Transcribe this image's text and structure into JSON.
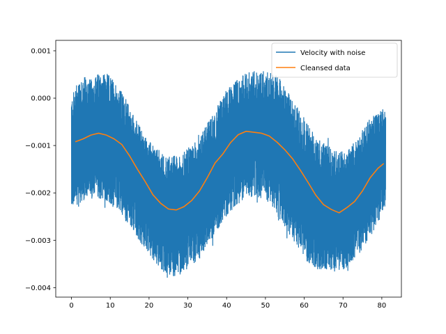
{
  "chart_data": {
    "type": "line",
    "title": "",
    "xlabel": "",
    "ylabel": "",
    "xlim": [
      -4.05,
      85.05
    ],
    "ylim": [
      -0.0042,
      0.00122
    ],
    "xticks": [
      0,
      10,
      20,
      30,
      40,
      50,
      60,
      70,
      80
    ],
    "xtick_labels": [
      "0",
      "10",
      "20",
      "30",
      "40",
      "50",
      "60",
      "70",
      "80"
    ],
    "yticks": [
      0.001,
      0.0,
      -0.001,
      -0.002,
      -0.003,
      -0.004
    ],
    "ytick_labels": [
      "0.001",
      "0.000",
      "−0.001",
      "−0.002",
      "−0.003",
      "−0.004"
    ],
    "grid": false,
    "legend_position": "top-right",
    "series": [
      {
        "name": "Velocity with noise",
        "color": "#1f77b4",
        "style": "dense-noisy",
        "x_range": [
          0,
          81
        ],
        "envelope_upper": [
          [
            0,
            0.0
          ],
          [
            2,
            0.0005
          ],
          [
            5,
            0.0004
          ],
          [
            8,
            0.0006
          ],
          [
            11,
            0.0004
          ],
          [
            14,
            0.0
          ],
          [
            17,
            -0.0005
          ],
          [
            20,
            -0.0009
          ],
          [
            24,
            -0.0012
          ],
          [
            28,
            -0.0012
          ],
          [
            32,
            -0.0009
          ],
          [
            36,
            -0.0004
          ],
          [
            40,
            0.0002
          ],
          [
            44,
            0.0005
          ],
          [
            47,
            0.0006
          ],
          [
            50,
            0.0006
          ],
          [
            53,
            0.0005
          ],
          [
            56,
            0.0001
          ],
          [
            60,
            -0.0004
          ],
          [
            64,
            -0.0009
          ],
          [
            68,
            -0.0011
          ],
          [
            71,
            -0.0011
          ],
          [
            74,
            -0.0008
          ],
          [
            77,
            -0.0004
          ],
          [
            80,
            -0.0002
          ],
          [
            81,
            -0.0002
          ]
        ],
        "envelope_lower": [
          [
            0,
            -0.0023
          ],
          [
            3,
            -0.0022
          ],
          [
            6,
            -0.0021
          ],
          [
            9,
            -0.0022
          ],
          [
            12,
            -0.0024
          ],
          [
            15,
            -0.0027
          ],
          [
            18,
            -0.0031
          ],
          [
            21,
            -0.0034
          ],
          [
            24,
            -0.0037
          ],
          [
            27,
            -0.0038
          ],
          [
            30,
            -0.0036
          ],
          [
            33,
            -0.0034
          ],
          [
            36,
            -0.003
          ],
          [
            39,
            -0.0026
          ],
          [
            42,
            -0.0023
          ],
          [
            45,
            -0.0021
          ],
          [
            48,
            -0.0021
          ],
          [
            51,
            -0.0022
          ],
          [
            54,
            -0.0026
          ],
          [
            57,
            -0.003
          ],
          [
            60,
            -0.0034
          ],
          [
            63,
            -0.0036
          ],
          [
            66,
            -0.0037
          ],
          [
            69,
            -0.0037
          ],
          [
            72,
            -0.0035
          ],
          [
            75,
            -0.0032
          ],
          [
            78,
            -0.0028
          ],
          [
            81,
            -0.0023
          ]
        ]
      },
      {
        "name": "Cleansed data",
        "color": "#ff7f0e",
        "style": "line",
        "x": [
          1,
          3,
          5,
          7,
          9,
          11,
          13,
          15,
          17,
          19,
          21,
          23,
          25,
          27,
          29,
          31,
          33,
          35,
          37,
          39,
          41,
          43,
          45,
          47,
          49,
          51,
          53,
          55,
          57,
          59,
          61,
          63,
          65,
          67,
          69,
          71,
          73,
          75,
          77,
          79,
          80.5
        ],
        "values": [
          -0.00092,
          -0.00086,
          -0.00078,
          -0.00074,
          -0.00078,
          -0.00086,
          -0.00098,
          -0.00122,
          -0.0015,
          -0.00176,
          -0.00204,
          -0.00222,
          -0.00234,
          -0.00236,
          -0.00229,
          -0.00216,
          -0.00196,
          -0.00168,
          -0.00137,
          -0.00118,
          -0.00094,
          -0.00077,
          -0.0007,
          -0.00072,
          -0.00074,
          -0.0008,
          -0.00093,
          -0.00109,
          -0.00128,
          -0.00152,
          -0.00178,
          -0.00205,
          -0.00225,
          -0.00235,
          -0.00242,
          -0.00231,
          -0.00218,
          -0.00196,
          -0.00168,
          -0.00148,
          -0.00138
        ]
      }
    ]
  }
}
